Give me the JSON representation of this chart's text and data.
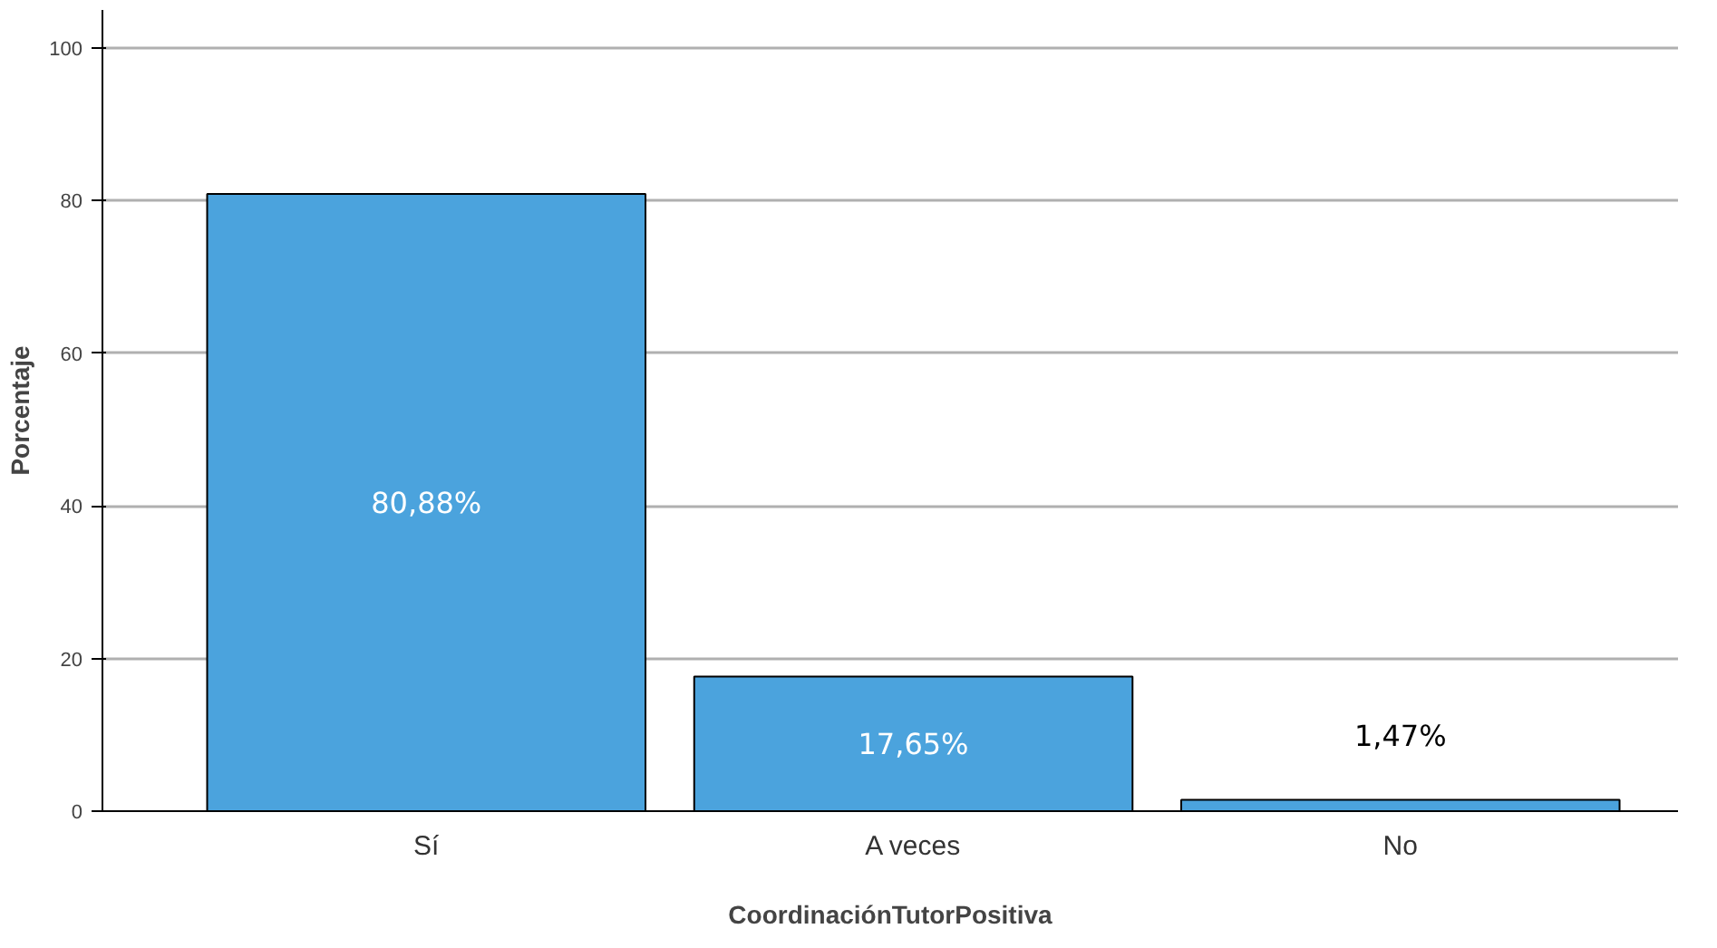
{
  "chart_data": {
    "type": "bar",
    "xlabel": "CoordinaciónTutorPositiva",
    "ylabel": "Porcentaje",
    "categories": [
      "Sí",
      "A veces",
      "No"
    ],
    "values": [
      80.88,
      17.65,
      1.47
    ],
    "value_labels": [
      "80,88%",
      "17,65%",
      "1,47%"
    ],
    "color": "#4ba3dd",
    "ylim": [
      0,
      105
    ],
    "yticks": [
      0,
      20,
      40,
      60,
      80,
      100
    ],
    "grid": "y"
  }
}
